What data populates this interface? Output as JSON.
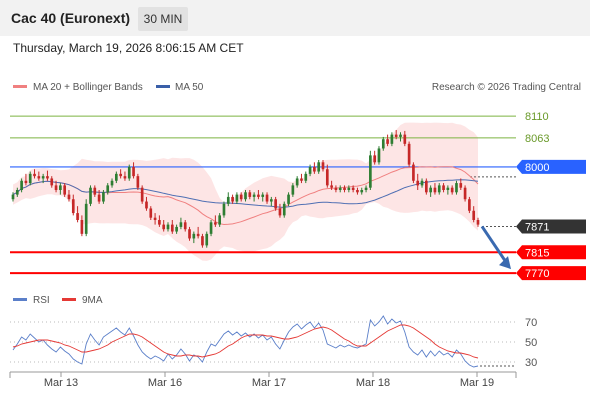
{
  "header": {
    "title": "Cac 40 (Euronext)",
    "timeframe": "30 MIN",
    "datetime": "Thursday, March 19, 2026 8:06:15 AM CET"
  },
  "legend": {
    "ma20_label": "MA 20 + Bollinger Bands",
    "ma50_label": "MA 50",
    "credit": "Research © 2026 Trading Central",
    "rsi_label": "RSI",
    "rsi_ma_label": "9MA"
  },
  "colors": {
    "candle_up": "#2e7d32",
    "candle_down": "#c62828",
    "ma20": "#f08080",
    "bollinger_fill": "#fde2e2",
    "ma50": "#4f6fb3",
    "resistance": "#7cb342",
    "pivot": "#2962ff",
    "support": "#ff0000",
    "current": "#333333",
    "arrow": "#3a6ab0"
  },
  "chart_data": [
    {
      "type": "candlestick",
      "x_tick_labels": [
        "Mar 13",
        "Mar 16",
        "Mar 17",
        "Mar 18",
        "Mar 19"
      ],
      "y_min": 7755,
      "y_max": 8145,
      "levels": [
        {
          "value": 8110,
          "label": "8110",
          "kind": "resistance"
        },
        {
          "value": 8063,
          "label": "8063",
          "kind": "resistance"
        },
        {
          "value": 8000,
          "label": "8000",
          "kind": "pivot"
        },
        {
          "value": 7871,
          "label": "7871",
          "kind": "current"
        },
        {
          "value": 7815,
          "label": "7815",
          "kind": "support"
        },
        {
          "value": 7770,
          "label": "7770",
          "kind": "support"
        }
      ],
      "arrow": {
        "from_value": 7871,
        "to_value": 7770
      },
      "series": [
        {
          "name": "MA 20 + Bollinger Bands",
          "kind": "ma20"
        },
        {
          "name": "MA 50",
          "kind": "ma50"
        }
      ],
      "candles": [
        [
          7930,
          7945,
          7925,
          7940
        ],
        [
          7940,
          7955,
          7935,
          7950
        ],
        [
          7950,
          7975,
          7945,
          7970
        ],
        [
          7970,
          7985,
          7960,
          7965
        ],
        [
          7965,
          7990,
          7960,
          7985
        ],
        [
          7985,
          7995,
          7975,
          7980
        ],
        [
          7980,
          7990,
          7970,
          7975
        ],
        [
          7975,
          7985,
          7965,
          7980
        ],
        [
          7980,
          7992,
          7970,
          7975
        ],
        [
          7975,
          7980,
          7955,
          7960
        ],
        [
          7960,
          7970,
          7945,
          7950
        ],
        [
          7950,
          7965,
          7940,
          7960
        ],
        [
          7960,
          7965,
          7935,
          7940
        ],
        [
          7940,
          7950,
          7925,
          7930
        ],
        [
          7930,
          7940,
          7895,
          7900
        ],
        [
          7900,
          7915,
          7880,
          7885
        ],
        [
          7885,
          7895,
          7850,
          7855
        ],
        [
          7855,
          7930,
          7850,
          7920
        ],
        [
          7920,
          7960,
          7915,
          7955
        ],
        [
          7955,
          7960,
          7935,
          7940
        ],
        [
          7940,
          7950,
          7920,
          7925
        ],
        [
          7925,
          7950,
          7920,
          7945
        ],
        [
          7945,
          7965,
          7940,
          7960
        ],
        [
          7960,
          7975,
          7955,
          7970
        ],
        [
          7970,
          7990,
          7965,
          7985
        ],
        [
          7985,
          7995,
          7975,
          7980
        ],
        [
          7980,
          7990,
          7970,
          7975
        ],
        [
          7975,
          8005,
          7970,
          8000
        ],
        [
          8000,
          8010,
          7975,
          7980
        ],
        [
          7980,
          7985,
          7950,
          7955
        ],
        [
          7955,
          7960,
          7920,
          7925
        ],
        [
          7925,
          7935,
          7905,
          7910
        ],
        [
          7910,
          7915,
          7885,
          7890
        ],
        [
          7890,
          7900,
          7875,
          7885
        ],
        [
          7885,
          7895,
          7870,
          7875
        ],
        [
          7875,
          7885,
          7860,
          7865
        ],
        [
          7865,
          7880,
          7860,
          7875
        ],
        [
          7875,
          7885,
          7855,
          7860
        ],
        [
          7860,
          7875,
          7855,
          7870
        ],
        [
          7870,
          7890,
          7865,
          7880
        ],
        [
          7880,
          7885,
          7860,
          7865
        ],
        [
          7865,
          7870,
          7840,
          7845
        ],
        [
          7845,
          7860,
          7835,
          7855
        ],
        [
          7855,
          7870,
          7845,
          7850
        ],
        [
          7850,
          7855,
          7825,
          7830
        ],
        [
          7830,
          7860,
          7825,
          7855
        ],
        [
          7855,
          7885,
          7850,
          7880
        ],
        [
          7880,
          7895,
          7870,
          7875
        ],
        [
          7875,
          7900,
          7870,
          7895
        ],
        [
          7895,
          7925,
          7890,
          7920
        ],
        [
          7920,
          7945,
          7915,
          7935
        ],
        [
          7935,
          7940,
          7920,
          7925
        ],
        [
          7925,
          7945,
          7920,
          7940
        ],
        [
          7940,
          7945,
          7925,
          7930
        ],
        [
          7930,
          7950,
          7925,
          7945
        ],
        [
          7945,
          7950,
          7930,
          7935
        ],
        [
          7935,
          7945,
          7925,
          7940
        ],
        [
          7940,
          7950,
          7930,
          7935
        ],
        [
          7935,
          7945,
          7925,
          7940
        ],
        [
          7940,
          7945,
          7920,
          7925
        ],
        [
          7925,
          7935,
          7915,
          7930
        ],
        [
          7930,
          7935,
          7905,
          7910
        ],
        [
          7910,
          7920,
          7890,
          7895
        ],
        [
          7895,
          7925,
          7890,
          7920
        ],
        [
          7920,
          7945,
          7915,
          7940
        ],
        [
          7940,
          7965,
          7935,
          7960
        ],
        [
          7960,
          7980,
          7955,
          7975
        ],
        [
          7975,
          7985,
          7965,
          7970
        ],
        [
          7970,
          7990,
          7965,
          7985
        ],
        [
          7985,
          8005,
          7980,
          8000
        ],
        [
          8000,
          8010,
          7985,
          7990
        ],
        [
          7990,
          8015,
          7985,
          8010
        ],
        [
          8010,
          8015,
          7990,
          7995
        ],
        [
          7995,
          8005,
          7955,
          7960
        ],
        [
          7960,
          7970,
          7950,
          7955
        ],
        [
          7955,
          7960,
          7945,
          7950
        ],
        [
          7950,
          7960,
          7945,
          7955
        ],
        [
          7955,
          7960,
          7945,
          7950
        ],
        [
          7950,
          7960,
          7945,
          7955
        ],
        [
          7955,
          7960,
          7945,
          7950
        ],
        [
          7950,
          7955,
          7940,
          7945
        ],
        [
          7945,
          7955,
          7940,
          7950
        ],
        [
          7950,
          7960,
          7945,
          7955
        ],
        [
          7955,
          8035,
          7950,
          8025
        ],
        [
          8025,
          8035,
          8005,
          8010
        ],
        [
          8010,
          8045,
          8005,
          8040
        ],
        [
          8040,
          8065,
          8035,
          8060
        ],
        [
          8060,
          8070,
          8045,
          8050
        ],
        [
          8050,
          8075,
          8045,
          8070
        ],
        [
          8070,
          8080,
          8060,
          8065
        ],
        [
          8065,
          8075,
          8055,
          8070
        ],
        [
          8070,
          8078,
          8045,
          8050
        ],
        [
          8050,
          8055,
          8000,
          8005
        ],
        [
          8005,
          8010,
          7965,
          7970
        ],
        [
          7970,
          7985,
          7950,
          7960
        ],
        [
          7960,
          7975,
          7955,
          7970
        ],
        [
          7970,
          7975,
          7940,
          7945
        ],
        [
          7945,
          7960,
          7935,
          7955
        ],
        [
          7955,
          7965,
          7940,
          7945
        ],
        [
          7945,
          7965,
          7940,
          7960
        ],
        [
          7960,
          7965,
          7945,
          7950
        ],
        [
          7950,
          7960,
          7940,
          7955
        ],
        [
          7955,
          7960,
          7940,
          7945
        ],
        [
          7945,
          7970,
          7940,
          7965
        ],
        [
          7965,
          7975,
          7950,
          7955
        ],
        [
          7955,
          7960,
          7925,
          7930
        ],
        [
          7930,
          7935,
          7900,
          7905
        ],
        [
          7905,
          7915,
          7880,
          7885
        ],
        [
          7885,
          7890,
          7870,
          7875
        ]
      ]
    },
    {
      "type": "line",
      "y_tick_labels": [
        "70",
        "50",
        "30"
      ],
      "y_min": 20,
      "y_max": 80,
      "series": [
        {
          "name": "RSI",
          "kind": "rsi",
          "color": "#5b7fc9",
          "values": [
            42,
            48,
            55,
            52,
            58,
            54,
            50,
            52,
            47,
            43,
            40,
            45,
            41,
            38,
            33,
            30,
            28,
            48,
            58,
            52,
            47,
            55,
            58,
            61,
            64,
            60,
            57,
            64,
            56,
            47,
            40,
            36,
            33,
            36,
            34,
            31,
            38,
            33,
            37,
            43,
            38,
            31,
            37,
            35,
            30,
            40,
            48,
            46,
            52,
            58,
            61,
            57,
            60,
            56,
            59,
            55,
            58,
            54,
            57,
            52,
            55,
            48,
            43,
            52,
            60,
            65,
            68,
            63,
            67,
            70,
            64,
            69,
            62,
            48,
            46,
            44,
            47,
            45,
            47,
            45,
            44,
            46,
            48,
            72,
            66,
            70,
            76,
            68,
            73,
            69,
            71,
            60,
            45,
            40,
            37,
            42,
            35,
            41,
            36,
            41,
            37,
            39,
            35,
            42,
            38,
            31,
            27,
            25,
            26
          ]
        },
        {
          "name": "9MA",
          "kind": "rsi_ma",
          "color": "#e53935",
          "values": [
            45,
            46,
            48,
            49,
            50,
            51,
            52,
            52,
            52,
            51,
            50,
            49,
            47,
            46,
            44,
            42,
            40,
            40,
            41,
            42,
            43,
            45,
            47,
            50,
            52,
            54,
            56,
            58,
            58,
            57,
            55,
            52,
            49,
            46,
            43,
            40,
            38,
            37,
            36,
            36,
            37,
            37,
            36,
            36,
            35,
            36,
            37,
            38,
            40,
            43,
            46,
            48,
            51,
            54,
            56,
            57,
            57,
            57,
            57,
            56,
            56,
            55,
            54,
            53,
            53,
            54,
            55,
            57,
            59,
            61,
            63,
            64,
            65,
            64,
            62,
            59,
            56,
            53,
            51,
            48,
            46,
            46,
            46,
            49,
            52,
            55,
            58,
            61,
            63,
            65,
            67,
            67,
            66,
            64,
            61,
            58,
            55,
            52,
            48,
            45,
            43,
            41,
            40,
            39,
            39,
            38,
            37,
            35,
            34
          ]
        }
      ]
    }
  ]
}
